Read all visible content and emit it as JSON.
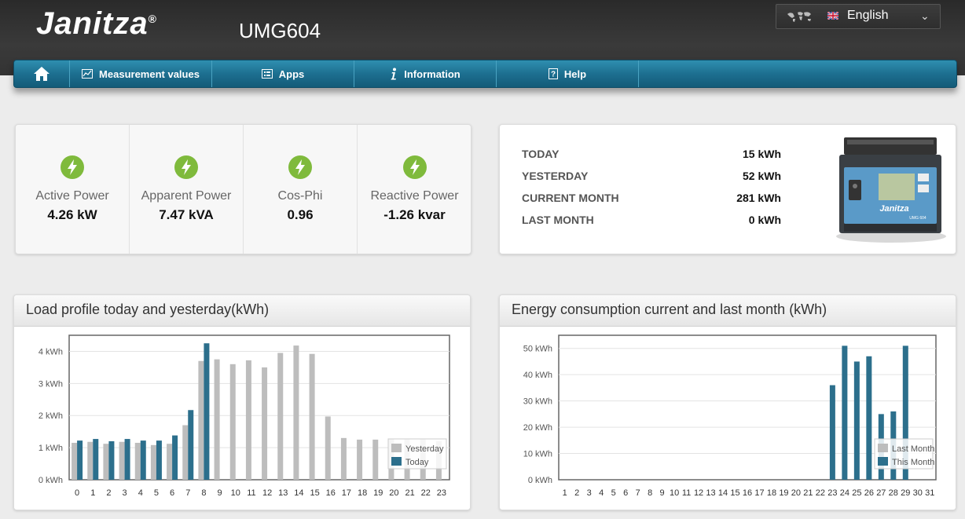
{
  "header": {
    "brand": "Janitza",
    "brand_mark": "®",
    "product": "UMG604",
    "language": "English",
    "world_icon": "world-map-icon",
    "flag_icon": "uk-flag-icon"
  },
  "nav": {
    "items": [
      {
        "label": "",
        "icon": "home-icon"
      },
      {
        "label": "Measurement values",
        "icon": "chart-icon"
      },
      {
        "label": "Apps",
        "icon": "apps-icon"
      },
      {
        "label": "Information",
        "icon": "info-icon"
      },
      {
        "label": "Help",
        "icon": "help-icon"
      }
    ]
  },
  "kpis": [
    {
      "label": "Active Power",
      "value": "4.26 kW"
    },
    {
      "label": "Apparent Power",
      "value": "7.47 kVA"
    },
    {
      "label": "Cos-Phi",
      "value": "0.96"
    },
    {
      "label": "Reactive Power",
      "value": "-1.26 kvar"
    }
  ],
  "energy": [
    {
      "label": "TODAY",
      "value": "15 kWh"
    },
    {
      "label": "YESTERDAY",
      "value": "52 kWh"
    },
    {
      "label": "CURRENT MONTH",
      "value": "281 kWh"
    },
    {
      "label": "LAST MONTH",
      "value": "0 kWh"
    }
  ],
  "device": {
    "brand": "Janitza",
    "model": "UMG 604"
  },
  "colors": {
    "accent": "#2c6f8c",
    "grey_bar": "#bdbdbd",
    "bolt_green": "#7fba3c"
  },
  "chart_titles": {
    "load": "Load profile today and yesterday(kWh)",
    "energy": "Energy consumption current and last month (kWh)"
  },
  "chart_data": [
    {
      "type": "bar",
      "title": "Load profile today and yesterday(kWh)",
      "categories": [
        "0",
        "1",
        "2",
        "3",
        "4",
        "5",
        "6",
        "7",
        "8",
        "9",
        "10",
        "11",
        "12",
        "13",
        "14",
        "15",
        "16",
        "17",
        "18",
        "19",
        "20",
        "21",
        "22",
        "23"
      ],
      "ylim": [
        0,
        4.5
      ],
      "yticks": [
        "0 kWh",
        "1 kWh",
        "2 kWh",
        "3 kWh",
        "4 kWh"
      ],
      "legend": "bottom-right",
      "series": [
        {
          "name": "Yesterday",
          "color": "#bdbdbd",
          "values": [
            1.15,
            1.18,
            1.12,
            1.18,
            1.15,
            1.08,
            1.12,
            1.7,
            3.7,
            3.75,
            3.6,
            3.72,
            3.5,
            3.95,
            4.18,
            3.92,
            1.97,
            1.3,
            1.25,
            1.25,
            1.28,
            1.25,
            1.25,
            1.2
          ]
        },
        {
          "name": "Today",
          "color": "#2c6f8c",
          "values": [
            1.22,
            1.27,
            1.2,
            1.27,
            1.22,
            1.22,
            1.38,
            2.17,
            4.25,
            null,
            null,
            null,
            null,
            null,
            null,
            null,
            null,
            null,
            null,
            null,
            null,
            null,
            null,
            null
          ]
        }
      ]
    },
    {
      "type": "bar",
      "title": "Energy consumption current and last month (kWh)",
      "categories": [
        "1",
        "2",
        "3",
        "4",
        "5",
        "6",
        "7",
        "8",
        "9",
        "10",
        "11",
        "12",
        "13",
        "14",
        "15",
        "16",
        "17",
        "18",
        "19",
        "20",
        "21",
        "22",
        "23",
        "24",
        "25",
        "26",
        "27",
        "28",
        "29",
        "30",
        "31"
      ],
      "ylim": [
        0,
        55
      ],
      "yticks": [
        "0 kWh",
        "10 kWh",
        "20 kWh",
        "30 kWh",
        "40 kWh",
        "50 kWh"
      ],
      "legend": "bottom-right",
      "series": [
        {
          "name": "Last Month",
          "color": "#bdbdbd",
          "values": [
            null,
            null,
            null,
            null,
            null,
            null,
            null,
            null,
            null,
            null,
            null,
            null,
            null,
            null,
            null,
            null,
            null,
            null,
            null,
            null,
            null,
            null,
            null,
            null,
            null,
            null,
            null,
            null,
            null,
            null,
            null
          ]
        },
        {
          "name": "This Month",
          "color": "#2c6f8c",
          "values": [
            null,
            null,
            null,
            null,
            null,
            null,
            null,
            null,
            null,
            null,
            null,
            null,
            null,
            null,
            null,
            null,
            null,
            null,
            null,
            null,
            null,
            null,
            36,
            51,
            45,
            47,
            25,
            26,
            51,
            null,
            null
          ]
        }
      ]
    }
  ]
}
